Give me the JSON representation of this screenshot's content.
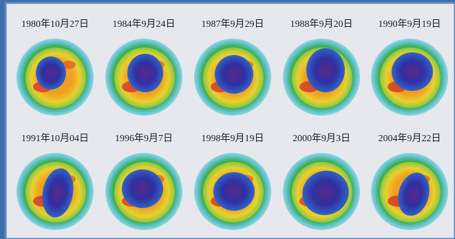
{
  "images": [
    {
      "date": "1980年10月27日"
    },
    {
      "date": "1984年9月24日"
    },
    {
      "date": "1987年9月29日"
    },
    {
      "date": "1988年9月20日"
    },
    {
      "date": "1990年9月19日"
    },
    {
      "date": "1991年10月04日"
    },
    {
      "date": "1996年9月7日"
    },
    {
      "date": "1998年9月19日"
    },
    {
      "date": "2000年9月3日"
    },
    {
      "date": "2004年9月22日"
    }
  ]
}
